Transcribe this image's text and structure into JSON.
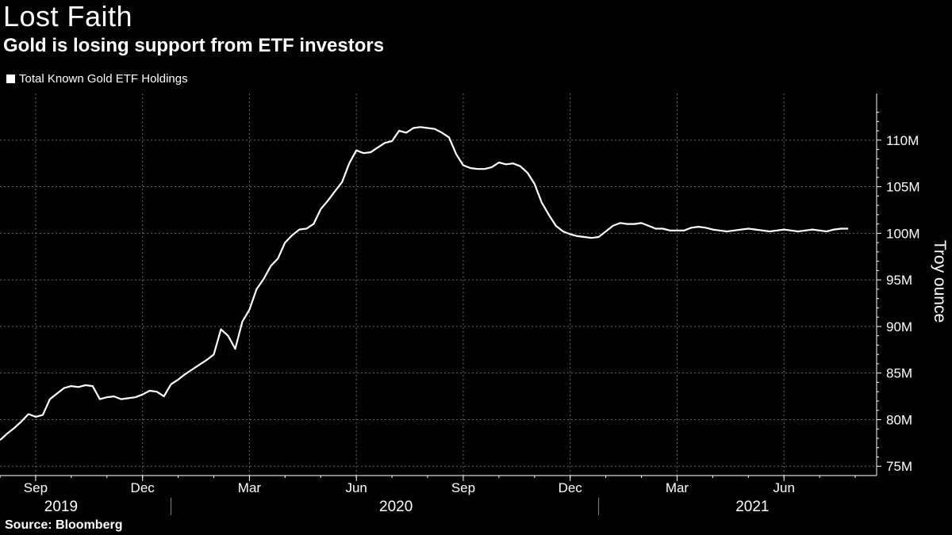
{
  "header": {
    "title": "Lost Faith",
    "subtitle": "Gold is losing support from ETF investors"
  },
  "legend": {
    "label": "Total Known Gold ETF Holdings",
    "swatch_color": "#ffffff"
  },
  "footer": {
    "source": "Source: Bloomberg"
  },
  "colors": {
    "background": "#000000",
    "line": "#ffffff",
    "grid": "#666666"
  },
  "chart_data": {
    "type": "line",
    "title": "Lost Faith",
    "subtitle": "Gold is losing support from ETF investors",
    "ylabel": "Troy ounce",
    "xlabel": "",
    "ylim": [
      74,
      115
    ],
    "xlim": [
      0,
      24.6
    ],
    "yticks": [
      75,
      80,
      85,
      90,
      95,
      100,
      105,
      110
    ],
    "ytick_labels": [
      "75M",
      "80M",
      "85M",
      "90M",
      "95M",
      "100M",
      "105M",
      "110M"
    ],
    "xticks": [
      {
        "x": 1,
        "label": "Sep"
      },
      {
        "x": 4,
        "label": "Dec"
      },
      {
        "x": 7,
        "label": "Mar"
      },
      {
        "x": 10,
        "label": "Jun"
      },
      {
        "x": 13,
        "label": "Sep"
      },
      {
        "x": 16,
        "label": "Dec"
      },
      {
        "x": 19,
        "label": "Mar"
      },
      {
        "x": 22,
        "label": "Jun"
      }
    ],
    "year_labels": [
      {
        "x": 0.6,
        "label": "2019"
      },
      {
        "x": 10.0,
        "label": "2020"
      },
      {
        "x": 20.0,
        "label": "2021"
      }
    ],
    "year_dividers": [
      4.8,
      16.8
    ],
    "grid": true,
    "legend_position": "top-left",
    "series": [
      {
        "name": "Total Known Gold ETF Holdings",
        "x": [
          0,
          0.2,
          0.4,
          0.6,
          0.8,
          1.0,
          1.2,
          1.4,
          1.6,
          1.8,
          2.0,
          2.2,
          2.4,
          2.6,
          2.8,
          3.0,
          3.2,
          3.4,
          3.6,
          3.8,
          4.0,
          4.2,
          4.4,
          4.6,
          4.8,
          5.0,
          5.2,
          5.4,
          5.6,
          5.8,
          6.0,
          6.2,
          6.4,
          6.6,
          6.8,
          7.0,
          7.2,
          7.4,
          7.6,
          7.8,
          8.0,
          8.2,
          8.4,
          8.6,
          8.8,
          9.0,
          9.2,
          9.4,
          9.6,
          9.8,
          10.0,
          10.2,
          10.4,
          10.6,
          10.8,
          11.0,
          11.2,
          11.4,
          11.6,
          11.8,
          12.0,
          12.2,
          12.4,
          12.6,
          12.8,
          13.0,
          13.2,
          13.4,
          13.6,
          13.8,
          14.0,
          14.2,
          14.4,
          14.6,
          14.8,
          15.0,
          15.2,
          15.4,
          15.6,
          15.8,
          16.0,
          16.2,
          16.4,
          16.6,
          16.8,
          17.0,
          17.2,
          17.4,
          17.6,
          17.8,
          18.0,
          18.2,
          18.4,
          18.6,
          18.8,
          19.0,
          19.2,
          19.4,
          19.6,
          19.8,
          20.0,
          20.2,
          20.4,
          20.6,
          20.8,
          21.0,
          21.2,
          21.4,
          21.6,
          21.8,
          22.0,
          22.2,
          22.4,
          22.6,
          22.8,
          23.0,
          23.2,
          23.4,
          23.6,
          23.8
        ],
        "values": [
          77.8,
          78.5,
          79.1,
          79.8,
          80.6,
          80.3,
          80.5,
          82.2,
          82.8,
          83.4,
          83.6,
          83.5,
          83.7,
          83.6,
          82.2,
          82.4,
          82.5,
          82.2,
          82.3,
          82.4,
          82.7,
          83.1,
          83.0,
          82.5,
          83.8,
          84.3,
          84.9,
          85.4,
          85.9,
          86.4,
          87.0,
          89.7,
          89.0,
          87.6,
          90.5,
          91.8,
          94.0,
          95.1,
          96.5,
          97.3,
          99.0,
          99.8,
          100.4,
          100.5,
          101.0,
          102.6,
          103.5,
          104.5,
          105.5,
          107.5,
          108.9,
          108.6,
          108.7,
          109.2,
          109.7,
          109.9,
          111.0,
          110.8,
          111.3,
          111.4,
          111.3,
          111.2,
          110.8,
          110.3,
          108.5,
          107.3,
          107.0,
          106.9,
          106.9,
          107.1,
          107.6,
          107.4,
          107.5,
          107.2,
          106.5,
          105.3,
          103.3,
          102.0,
          100.8,
          100.2,
          99.9,
          99.7,
          99.6,
          99.5,
          99.6,
          100.2,
          100.8,
          101.1,
          101.0,
          101.0,
          101.1,
          100.8,
          100.5,
          100.5,
          100.3,
          100.3,
          100.3,
          100.6,
          100.7,
          100.6,
          100.4,
          100.3,
          100.2,
          100.3,
          100.4,
          100.5,
          100.4,
          100.3,
          100.2,
          100.3,
          100.4,
          100.3,
          100.2,
          100.3,
          100.4,
          100.3,
          100.2,
          100.4,
          100.5,
          100.5
        ]
      }
    ]
  }
}
